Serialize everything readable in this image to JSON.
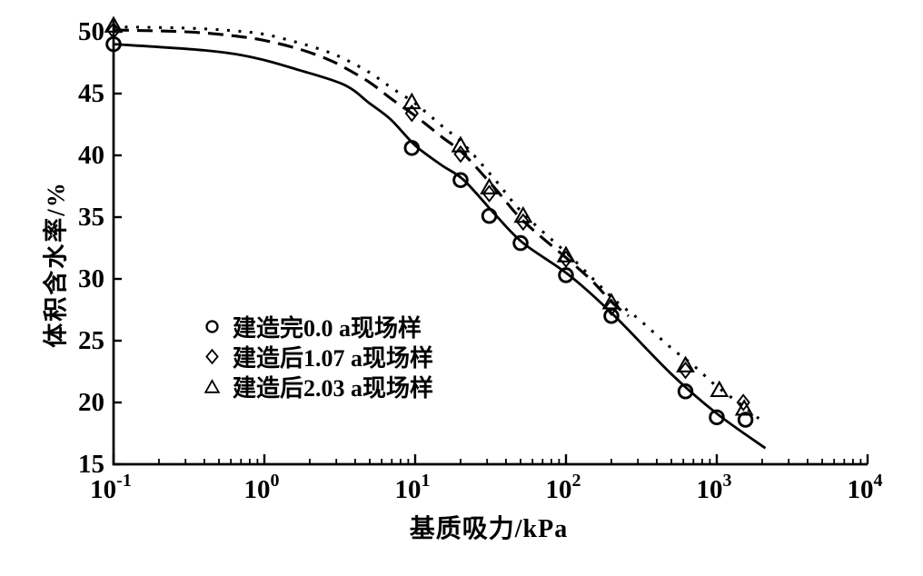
{
  "figure": {
    "background": "#ffffff",
    "ink": "#000000"
  },
  "chart_data": {
    "type": "line",
    "title": "",
    "xlabel": "基质吸力/kPa",
    "ylabel": "体积含水率/%",
    "x_scale": "log",
    "x_range": [
      0.1,
      10000
    ],
    "y_range": [
      15,
      50
    ],
    "y_ticks": [
      15,
      20,
      25,
      30,
      35,
      40,
      45,
      50
    ],
    "x_tick_base": "10",
    "x_tick_exponents": [
      "-1",
      "0",
      "1",
      "2",
      "3",
      "4"
    ],
    "grid": false,
    "legend_position": "inside-middle-left",
    "series": [
      {
        "name": "建造完0.0 a现场样",
        "marker": "circle",
        "line_style": "solid",
        "points": [
          [
            0.1,
            49.0
          ],
          [
            9.5,
            40.6
          ],
          [
            20,
            38.0
          ],
          [
            31,
            35.1
          ],
          [
            50,
            32.9
          ],
          [
            100,
            30.3
          ],
          [
            200,
            27.0
          ],
          [
            620,
            20.9
          ],
          [
            1000,
            18.8
          ],
          [
            1550,
            18.6
          ]
        ],
        "fit_curve": [
          [
            0.1,
            49.0
          ],
          [
            0.4,
            48.5
          ],
          [
            0.86,
            47.9
          ],
          [
            1.7,
            46.9
          ],
          [
            3.4,
            45.7
          ],
          [
            5,
            44.2
          ],
          [
            6.9,
            42.9
          ],
          [
            10,
            40.8
          ],
          [
            15,
            39.2
          ],
          [
            21,
            38.0
          ],
          [
            34,
            35.2
          ],
          [
            52,
            32.9
          ],
          [
            105,
            30.3
          ],
          [
            206,
            27.1
          ],
          [
            500,
            22.3
          ],
          [
            1000,
            19.1
          ],
          [
            2100,
            16.3
          ]
        ]
      },
      {
        "name": "建造后1.07 a现场样",
        "marker": "diamond",
        "line_style": "dashed",
        "points": [
          [
            0.1,
            50.1
          ],
          [
            9.5,
            43.4
          ],
          [
            20,
            40.1
          ],
          [
            31,
            36.9
          ],
          [
            52,
            34.6
          ],
          [
            100,
            31.6
          ],
          [
            200,
            27.7
          ],
          [
            620,
            22.6
          ],
          [
            1500,
            20.0
          ]
        ],
        "fit_curve": [
          [
            0.1,
            50.15
          ],
          [
            0.3,
            50.0
          ],
          [
            0.6,
            49.7
          ],
          [
            1,
            49.3
          ],
          [
            1.7,
            48.6
          ],
          [
            2.6,
            47.8
          ],
          [
            3.4,
            47.1
          ],
          [
            5,
            45.9
          ],
          [
            6.9,
            44.6
          ],
          [
            10,
            43.2
          ],
          [
            15,
            41.5
          ],
          [
            21,
            40.1
          ],
          [
            34,
            37.3
          ],
          [
            52,
            34.7
          ],
          [
            105,
            31.5
          ],
          [
            150,
            29.8
          ],
          [
            206,
            28.0
          ],
          [
            260,
            27.0
          ]
        ]
      },
      {
        "name": "建造后2.03 a现场样",
        "marker": "triangle",
        "line_style": "dotted",
        "points": [
          [
            0.1,
            50.5
          ],
          [
            9.5,
            44.3
          ],
          [
            20,
            40.8
          ],
          [
            31,
            37.4
          ],
          [
            52,
            35.1
          ],
          [
            100,
            31.9
          ],
          [
            200,
            28.1
          ],
          [
            620,
            23.0
          ],
          [
            1040,
            21.0
          ],
          [
            1520,
            19.5
          ]
        ],
        "fit_curve": [
          [
            0.1,
            50.4
          ],
          [
            0.3,
            50.3
          ],
          [
            0.6,
            50.1
          ],
          [
            1,
            49.8
          ],
          [
            1.7,
            49.1
          ],
          [
            2.6,
            48.4
          ],
          [
            3.4,
            47.8
          ],
          [
            5,
            46.7
          ],
          [
            6.9,
            45.5
          ],
          [
            10,
            44.2
          ],
          [
            15,
            42.4
          ],
          [
            21,
            40.9
          ],
          [
            34,
            38.0
          ],
          [
            52,
            35.3
          ],
          [
            105,
            31.9
          ],
          [
            206,
            28.4
          ],
          [
            300,
            26.8
          ],
          [
            500,
            24.4
          ],
          [
            700,
            23.0
          ],
          [
            1000,
            21.3
          ],
          [
            1500,
            19.7
          ],
          [
            1900,
            18.7
          ]
        ]
      }
    ]
  }
}
